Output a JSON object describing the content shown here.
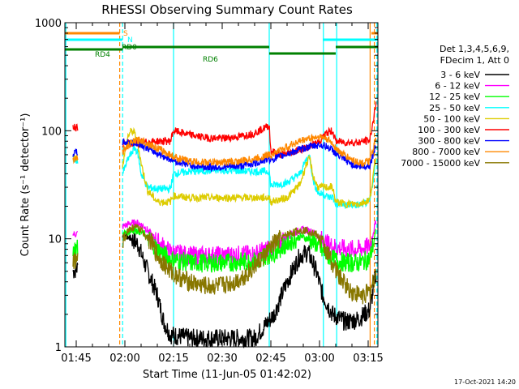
{
  "chart_data": {
    "type": "line",
    "title": "RHESSI Observing Summary Count Rates",
    "xlabel": "Start Time (11-Jun-05 01:42:02)",
    "ylabel": "Count Rate (s⁻¹ detector⁻¹)",
    "yscale": "log",
    "ylim": [
      1,
      1000
    ],
    "xlim": [
      101.5,
      198
    ],
    "x_unit": "minutes after 00:00 UT",
    "yticks": [
      {
        "v": 1,
        "label": "1"
      },
      {
        "v": 10,
        "label": "10"
      },
      {
        "v": 100,
        "label": "100"
      },
      {
        "v": 1000,
        "label": "1000"
      }
    ],
    "xticks": [
      {
        "v": 105,
        "label": "01:45"
      },
      {
        "v": 120,
        "label": "02:00"
      },
      {
        "v": 135,
        "label": "02:15"
      },
      {
        "v": 150,
        "label": "02:30"
      },
      {
        "v": 165,
        "label": "02:45"
      },
      {
        "v": 180,
        "label": "03:00"
      },
      {
        "v": 195,
        "label": "03:15"
      }
    ],
    "legend_header": [
      "Det 1,3,4,5,6,9,",
      "FDecim 1, Att 0"
    ],
    "legend_position": "right",
    "series": [
      {
        "name": "3 - 6 keV",
        "color": "#000000",
        "points": [
          [
            104,
            5
          ],
          [
            119.3,
            11
          ],
          [
            122,
            10
          ],
          [
            124,
            9
          ],
          [
            126,
            6
          ],
          [
            130,
            3
          ],
          [
            132,
            1.7
          ],
          [
            134,
            1.3
          ],
          [
            140,
            1.2
          ],
          [
            150,
            1.2
          ],
          [
            160,
            1.2
          ],
          [
            166,
            2
          ],
          [
            170,
            4
          ],
          [
            174,
            7
          ],
          [
            176.5,
            7.5
          ],
          [
            179,
            5
          ],
          [
            181,
            3
          ],
          [
            184,
            2
          ],
          [
            188,
            1.7
          ],
          [
            192,
            1.8
          ],
          [
            195.5,
            2.2
          ],
          [
            197.5,
            5
          ]
        ]
      },
      {
        "name": "6 - 12 keV",
        "color": "#ff00ff",
        "points": [
          [
            104,
            11
          ],
          [
            119.3,
            13
          ],
          [
            122,
            14
          ],
          [
            124,
            14
          ],
          [
            126,
            13
          ],
          [
            128,
            11
          ],
          [
            130,
            9.5
          ],
          [
            134,
            7.5
          ],
          [
            140,
            7
          ],
          [
            150,
            7
          ],
          [
            160,
            7.2
          ],
          [
            166,
            8.5
          ],
          [
            170,
            10.5
          ],
          [
            174,
            12
          ],
          [
            176.5,
            12
          ],
          [
            179,
            11
          ],
          [
            181,
            9.5
          ],
          [
            184,
            8.5
          ],
          [
            188,
            8
          ],
          [
            192,
            8
          ],
          [
            195.5,
            8.5
          ],
          [
            197.5,
            15
          ]
        ]
      },
      {
        "name": "12 - 25 keV",
        "color": "#00ff00",
        "points": [
          [
            104,
            8
          ],
          [
            119.3,
            11
          ],
          [
            122,
            12
          ],
          [
            124,
            12
          ],
          [
            126,
            11
          ],
          [
            128,
            9.5
          ],
          [
            130,
            8
          ],
          [
            134,
            6.5
          ],
          [
            140,
            6
          ],
          [
            150,
            6
          ],
          [
            160,
            6.2
          ],
          [
            166,
            7.5
          ],
          [
            170,
            9
          ],
          [
            174,
            10.5
          ],
          [
            176.5,
            10
          ],
          [
            179,
            9
          ],
          [
            181,
            7.5
          ],
          [
            184,
            6.5
          ],
          [
            188,
            6
          ],
          [
            192,
            6
          ],
          [
            195.5,
            6.5
          ],
          [
            197.5,
            12
          ]
        ]
      },
      {
        "name": "25 - 50 keV",
        "color": "#00ffff",
        "points": [
          [
            104,
            55
          ],
          [
            119.3,
            40
          ],
          [
            121,
            55
          ],
          [
            123,
            70
          ],
          [
            124,
            62
          ],
          [
            125,
            40
          ],
          [
            127,
            30
          ],
          [
            130,
            29
          ],
          [
            134,
            29
          ],
          [
            135,
            40
          ],
          [
            140,
            42
          ],
          [
            150,
            43
          ],
          [
            160,
            42
          ],
          [
            164.5,
            42
          ],
          [
            165,
            31
          ],
          [
            170,
            33
          ],
          [
            174,
            40
          ],
          [
            176,
            55
          ],
          [
            177,
            58
          ],
          [
            178,
            35
          ],
          [
            179.5,
            27
          ],
          [
            180,
            26
          ],
          [
            181,
            26
          ],
          [
            183,
            24
          ],
          [
            184,
            24.5
          ],
          [
            185,
            21
          ],
          [
            188,
            20.5
          ],
          [
            192,
            20.5
          ],
          [
            195.5,
            22
          ],
          [
            197.5,
            55
          ]
        ]
      },
      {
        "name": "50 - 100 keV",
        "color": "#ddcc00",
        "points": [
          [
            104,
            58
          ],
          [
            119.3,
            48
          ],
          [
            121,
            90
          ],
          [
            122,
            100
          ],
          [
            123,
            95
          ],
          [
            124,
            75
          ],
          [
            125,
            50
          ],
          [
            127,
            28
          ],
          [
            130,
            22
          ],
          [
            134,
            22
          ],
          [
            135,
            25
          ],
          [
            140,
            24
          ],
          [
            150,
            24
          ],
          [
            160,
            24
          ],
          [
            164.5,
            24
          ],
          [
            165,
            22
          ],
          [
            170,
            24
          ],
          [
            174,
            32
          ],
          [
            176,
            50
          ],
          [
            177,
            55
          ],
          [
            178,
            38
          ],
          [
            179.5,
            30
          ],
          [
            181,
            30
          ],
          [
            184,
            30
          ],
          [
            185,
            22
          ],
          [
            188,
            21
          ],
          [
            192,
            21
          ],
          [
            195.5,
            23
          ],
          [
            197.5,
            60
          ]
        ]
      },
      {
        "name": "100 - 300 keV",
        "color": "#ff0000",
        "points": [
          [
            104,
            110
          ],
          [
            119.3,
            76
          ],
          [
            122,
            76
          ],
          [
            126,
            78
          ],
          [
            130,
            80
          ],
          [
            134,
            80
          ],
          [
            135,
            100
          ],
          [
            140,
            92
          ],
          [
            145,
            86
          ],
          [
            150,
            85
          ],
          [
            155,
            88
          ],
          [
            160,
            95
          ],
          [
            164.5,
            112
          ],
          [
            165,
            65
          ],
          [
            168,
            60
          ],
          [
            172,
            64
          ],
          [
            176,
            70
          ],
          [
            178,
            74
          ],
          [
            180,
            80
          ],
          [
            182,
            95
          ],
          [
            184,
            100
          ],
          [
            185,
            80
          ],
          [
            188,
            78
          ],
          [
            192,
            78
          ],
          [
            195.5,
            82
          ],
          [
            197.5,
            180
          ]
        ]
      },
      {
        "name": "300 - 800 keV",
        "color": "#0000ff",
        "points": [
          [
            104,
            62
          ],
          [
            119.3,
            78
          ],
          [
            122,
            78
          ],
          [
            125,
            75
          ],
          [
            128,
            66
          ],
          [
            132,
            58
          ],
          [
            136,
            52
          ],
          [
            140,
            48
          ],
          [
            145,
            46
          ],
          [
            150,
            46
          ],
          [
            155,
            47
          ],
          [
            160,
            50
          ],
          [
            164.5,
            55
          ],
          [
            165,
            54
          ],
          [
            168,
            58
          ],
          [
            172,
            64
          ],
          [
            176,
            70
          ],
          [
            180,
            74
          ],
          [
            182,
            72
          ],
          [
            184,
            66
          ],
          [
            186,
            58
          ],
          [
            190,
            49
          ],
          [
            193,
            46
          ],
          [
            195.5,
            48
          ],
          [
            197.5,
            75
          ]
        ]
      },
      {
        "name": "800 - 7000 keV",
        "color": "#ff8800",
        "points": [
          [
            104,
            55
          ],
          [
            119.3,
            64
          ],
          [
            121.5,
            75
          ],
          [
            123,
            80
          ],
          [
            125,
            82
          ],
          [
            128,
            74
          ],
          [
            132,
            64
          ],
          [
            136,
            56
          ],
          [
            140,
            52
          ],
          [
            145,
            51
          ],
          [
            150,
            51
          ],
          [
            155,
            52
          ],
          [
            160,
            55
          ],
          [
            164.5,
            60
          ],
          [
            165,
            60
          ],
          [
            168,
            66
          ],
          [
            172,
            76
          ],
          [
            176,
            84
          ],
          [
            180,
            88
          ],
          [
            182,
            85
          ],
          [
            184,
            76
          ],
          [
            186,
            64
          ],
          [
            190,
            54
          ],
          [
            193,
            50
          ],
          [
            195.5,
            52
          ],
          [
            197.5,
            85
          ]
        ]
      },
      {
        "name": "7000 - 15000 keV",
        "color": "#887700",
        "points": [
          [
            104,
            6
          ],
          [
            119.3,
            9
          ],
          [
            121,
            12
          ],
          [
            123,
            13
          ],
          [
            125,
            12
          ],
          [
            128,
            9.5
          ],
          [
            130,
            7
          ],
          [
            134,
            5
          ],
          [
            138,
            4.2
          ],
          [
            142,
            3.8
          ],
          [
            146,
            3.6
          ],
          [
            150,
            3.7
          ],
          [
            154,
            4
          ],
          [
            158,
            4.8
          ],
          [
            162,
            6.5
          ],
          [
            166,
            9
          ],
          [
            170,
            11
          ],
          [
            174,
            12
          ],
          [
            176,
            12
          ],
          [
            179,
            11
          ],
          [
            181,
            9
          ],
          [
            184,
            6
          ],
          [
            186,
            4.5
          ],
          [
            190,
            3.2
          ],
          [
            193,
            3
          ],
          [
            195.5,
            3.2
          ],
          [
            197.5,
            5
          ]
        ]
      }
    ],
    "state_bars": [
      {
        "label": "S",
        "color": "#ff8800",
        "level": 1,
        "segments": [
          [
            101.5,
            118.4
          ],
          [
            196,
            198
          ]
        ]
      },
      {
        "label": "N",
        "color": "#00ffff",
        "level": 2,
        "segments": [
          [
            101.5,
            119.2
          ],
          [
            181,
            198
          ]
        ]
      },
      {
        "label": "RD4",
        "color": "#008000",
        "level": 3,
        "segments": [
          [
            101.5,
            119.3
          ]
        ]
      },
      {
        "label": "RD0",
        "color": "#008000",
        "level": 4,
        "segments": [
          [
            119.3,
            135
          ]
        ]
      },
      {
        "label": "RD6",
        "color": "#008000",
        "level": 4,
        "segments": [
          [
            135,
            164.5
          ]
        ]
      },
      {
        "label": "",
        "color": "#008000",
        "level": 5,
        "segments": [
          [
            164.5,
            185
          ]
        ]
      },
      {
        "label": "",
        "color": "#008000",
        "level": 4,
        "segments": [
          [
            185,
            198
          ]
        ]
      }
    ],
    "vlines": [
      {
        "x": 101.8,
        "color": "#00ffff",
        "style": "solid"
      },
      {
        "x": 118.4,
        "color": "#ff8800",
        "style": "dashed"
      },
      {
        "x": 119.3,
        "color": "#00ffff",
        "style": "dashed"
      },
      {
        "x": 135,
        "color": "#00ffff",
        "style": "solid"
      },
      {
        "x": 164.5,
        "color": "#00ffff",
        "style": "solid"
      },
      {
        "x": 181.2,
        "color": "#00ffff",
        "style": "solid"
      },
      {
        "x": 185.3,
        "color": "#00ffff",
        "style": "solid"
      },
      {
        "x": 195.6,
        "color": "#ff8800",
        "style": "solid"
      },
      {
        "x": 196.9,
        "color": "#ff8800",
        "style": "dashed"
      },
      {
        "x": 197.7,
        "color": "#00ffff",
        "style": "dashed"
      }
    ],
    "footer_stamp": "17-Oct-2021 14:20"
  }
}
